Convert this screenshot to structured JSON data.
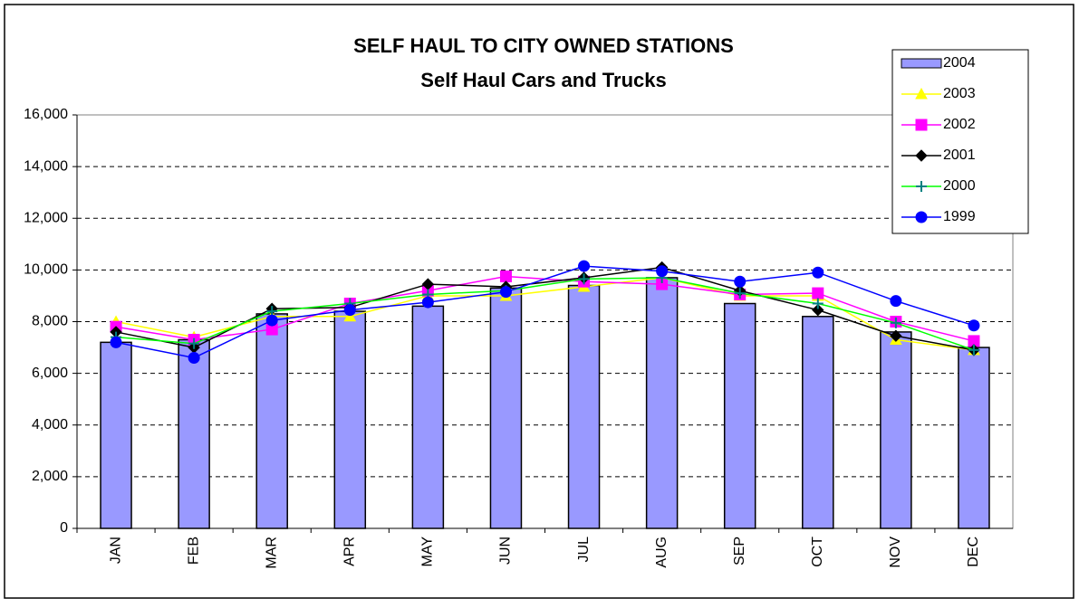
{
  "chart_data": {
    "type": "bar",
    "title": "SELF HAUL TO CITY OWNED STATIONS",
    "subtitle": "Self Haul Cars and Trucks",
    "categories": [
      "JAN",
      "FEB",
      "MAR",
      "APR",
      "MAY",
      "JUN",
      "JUL",
      "AUG",
      "SEP",
      "OCT",
      "NOV",
      "DEC"
    ],
    "series": [
      {
        "name": "2004",
        "type": "bar",
        "color": "#9999ff",
        "values": [
          7200,
          7300,
          8300,
          8400,
          8600,
          9300,
          9400,
          9700,
          8700,
          8200,
          7600,
          7000
        ]
      },
      {
        "name": "2003",
        "type": "line",
        "marker": "triangle",
        "color": "#ffff00",
        "values": [
          8000,
          7400,
          8200,
          8200,
          9000,
          9000,
          9350,
          9700,
          9000,
          9000,
          7300,
          6900
        ]
      },
      {
        "name": "2002",
        "type": "line",
        "marker": "square",
        "color": "#ff00ff",
        "values": [
          7800,
          7300,
          7700,
          8700,
          9200,
          9750,
          9550,
          9450,
          9050,
          9100,
          8000,
          7250
        ]
      },
      {
        "name": "2001",
        "type": "line",
        "marker": "diamond",
        "color": "#000000",
        "values": [
          7600,
          7000,
          8500,
          8550,
          9450,
          9350,
          9700,
          10100,
          9200,
          8450,
          7450,
          6900
        ]
      },
      {
        "name": "2000",
        "type": "line",
        "marker": "plus",
        "color": "#00ff00",
        "values": [
          7400,
          7150,
          8400,
          8700,
          9050,
          9200,
          9650,
          9700,
          9100,
          8700,
          7950,
          6900
        ]
      },
      {
        "name": "1999",
        "type": "line",
        "marker": "circle",
        "color": "#0000ff",
        "values": [
          7200,
          6600,
          8050,
          8450,
          8750,
          9150,
          10150,
          9950,
          9550,
          9900,
          8800,
          7850
        ]
      }
    ],
    "ylim": [
      0,
      16000
    ],
    "yticks": [
      0,
      {
        "value": 2000,
        "label": "2,000"
      },
      {
        "value": 4000,
        "label": "4,000"
      },
      {
        "value": 6000,
        "label": "6,000"
      },
      {
        "value": 8000,
        "label": "8,000"
      },
      {
        "value": 10000,
        "label": "10,000"
      },
      {
        "value": 12000,
        "label": "12,000"
      },
      {
        "value": 14000,
        "label": "14,000"
      },
      {
        "value": 16000,
        "label": "16,000"
      }
    ],
    "grid": true,
    "legend": "top-right"
  }
}
